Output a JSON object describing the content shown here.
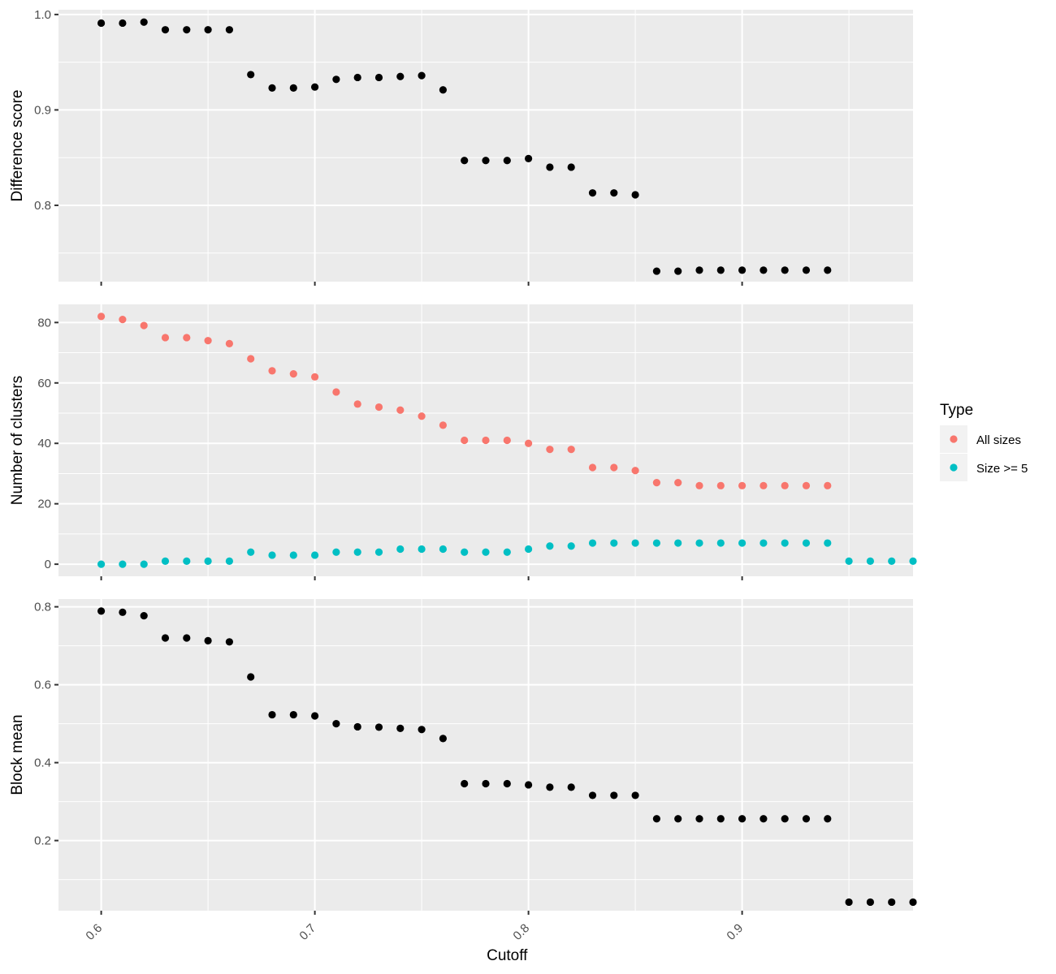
{
  "chart_data": [
    {
      "type": "scatter",
      "panel": "top",
      "title": "",
      "xlabel": "",
      "ylabel": "Difference score",
      "xlim": [
        0.58,
        0.98
      ],
      "ylim": [
        0.72,
        1.005
      ],
      "x_ticks": [
        0.6,
        0.7,
        0.8,
        0.9
      ],
      "y_ticks": [
        0.8,
        0.9,
        1.0
      ],
      "y_tick_labels": [
        "0.8",
        "0.9",
        "1.0"
      ],
      "grid": true,
      "series": [
        {
          "color": "#000000",
          "x": [
            0.6,
            0.61,
            0.62,
            0.63,
            0.64,
            0.65,
            0.66,
            0.67,
            0.68,
            0.69,
            0.7,
            0.71,
            0.72,
            0.73,
            0.74,
            0.75,
            0.76,
            0.77,
            0.78,
            0.79,
            0.8,
            0.81,
            0.82,
            0.83,
            0.84,
            0.85,
            0.86,
            0.87,
            0.88,
            0.89,
            0.9,
            0.91,
            0.92,
            0.93,
            0.94
          ],
          "y": [
            0.991,
            0.991,
            0.992,
            0.984,
            0.984,
            0.984,
            0.984,
            0.937,
            0.923,
            0.923,
            0.924,
            0.932,
            0.934,
            0.934,
            0.935,
            0.936,
            0.921,
            0.847,
            0.847,
            0.847,
            0.849,
            0.84,
            0.84,
            0.813,
            0.813,
            0.811,
            0.731,
            0.731,
            0.732,
            0.732,
            0.732,
            0.732,
            0.732,
            0.732,
            0.732
          ]
        }
      ]
    },
    {
      "type": "scatter",
      "panel": "middle",
      "title": "",
      "xlabel": "",
      "ylabel": "Number of clusters",
      "xlim": [
        0.58,
        0.98
      ],
      "ylim": [
        -4,
        86
      ],
      "x_ticks": [
        0.6,
        0.7,
        0.8,
        0.9
      ],
      "y_ticks": [
        0,
        20,
        40,
        60,
        80
      ],
      "y_tick_labels": [
        "0",
        "20",
        "40",
        "60",
        "80"
      ],
      "grid": true,
      "legend": {
        "title": "Type",
        "position": "right",
        "entries": [
          {
            "name": "All sizes",
            "color": "#f8766d"
          },
          {
            "name": "Size >= 5",
            "color": "#00bfc4"
          }
        ]
      },
      "series": [
        {
          "name": "All sizes",
          "color": "#f8766d",
          "x": [
            0.6,
            0.61,
            0.62,
            0.63,
            0.64,
            0.65,
            0.66,
            0.67,
            0.68,
            0.69,
            0.7,
            0.71,
            0.72,
            0.73,
            0.74,
            0.75,
            0.76,
            0.77,
            0.78,
            0.79,
            0.8,
            0.81,
            0.82,
            0.83,
            0.84,
            0.85,
            0.86,
            0.87,
            0.88,
            0.89,
            0.9,
            0.91,
            0.92,
            0.93,
            0.94
          ],
          "y": [
            82,
            81,
            79,
            75,
            75,
            74,
            73,
            68,
            64,
            63,
            62,
            57,
            53,
            52,
            51,
            49,
            46,
            41,
            41,
            41,
            40,
            38,
            38,
            32,
            32,
            31,
            27,
            27,
            26,
            26,
            26,
            26,
            26,
            26,
            26
          ]
        },
        {
          "name": "Size >= 5",
          "color": "#00bfc4",
          "x": [
            0.6,
            0.61,
            0.62,
            0.63,
            0.64,
            0.65,
            0.66,
            0.67,
            0.68,
            0.69,
            0.7,
            0.71,
            0.72,
            0.73,
            0.74,
            0.75,
            0.76,
            0.77,
            0.78,
            0.79,
            0.8,
            0.81,
            0.82,
            0.83,
            0.84,
            0.85,
            0.86,
            0.87,
            0.88,
            0.89,
            0.9,
            0.91,
            0.92,
            0.93,
            0.94,
            0.95,
            0.96,
            0.97,
            0.98
          ],
          "y": [
            0,
            0,
            0,
            1,
            1,
            1,
            1,
            4,
            3,
            3,
            3,
            4,
            4,
            4,
            5,
            5,
            5,
            4,
            4,
            4,
            5,
            6,
            6,
            7,
            7,
            7,
            7,
            7,
            7,
            7,
            7,
            7,
            7,
            7,
            7,
            1,
            1,
            1,
            1
          ]
        }
      ]
    },
    {
      "type": "scatter",
      "panel": "bottom",
      "title": "",
      "xlabel": "Cutoff",
      "ylabel": "Block mean",
      "xlim": [
        0.58,
        0.98
      ],
      "ylim": [
        0.02,
        0.82
      ],
      "x_ticks": [
        0.6,
        0.7,
        0.8,
        0.9
      ],
      "x_tick_labels": [
        "0.6",
        "0.7",
        "0.8",
        "0.9"
      ],
      "y_ticks": [
        0.2,
        0.4,
        0.6,
        0.8
      ],
      "y_tick_labels": [
        "0.2",
        "0.4",
        "0.6",
        "0.8"
      ],
      "grid": true,
      "series": [
        {
          "color": "#000000",
          "x": [
            0.6,
            0.61,
            0.62,
            0.63,
            0.64,
            0.65,
            0.66,
            0.67,
            0.68,
            0.69,
            0.7,
            0.71,
            0.72,
            0.73,
            0.74,
            0.75,
            0.76,
            0.77,
            0.78,
            0.79,
            0.8,
            0.81,
            0.82,
            0.83,
            0.84,
            0.85,
            0.86,
            0.87,
            0.88,
            0.89,
            0.9,
            0.91,
            0.92,
            0.93,
            0.94,
            0.95,
            0.96,
            0.97,
            0.98
          ],
          "y": [
            0.789,
            0.786,
            0.777,
            0.72,
            0.72,
            0.713,
            0.71,
            0.62,
            0.523,
            0.523,
            0.52,
            0.5,
            0.492,
            0.491,
            0.488,
            0.485,
            0.462,
            0.346,
            0.346,
            0.346,
            0.343,
            0.337,
            0.337,
            0.316,
            0.316,
            0.316,
            0.256,
            0.256,
            0.256,
            0.256,
            0.256,
            0.256,
            0.256,
            0.256,
            0.256,
            0.042,
            0.042,
            0.042,
            0.042
          ]
        }
      ]
    }
  ]
}
